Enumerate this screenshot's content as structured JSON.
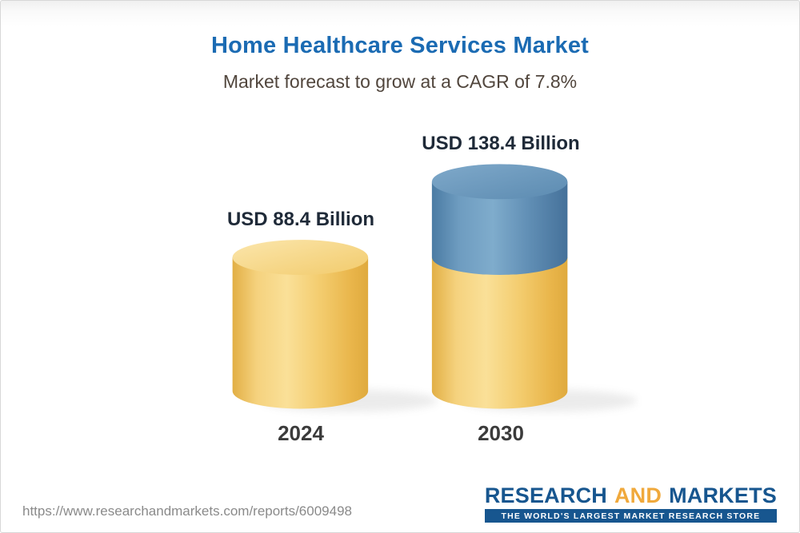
{
  "header": {
    "title": "Home Healthcare Services Market",
    "subtitle": "Market forecast to grow at a CAGR of 7.8%"
  },
  "chart_data": {
    "type": "bar",
    "subtype": "3d-cylinder",
    "title": "Home Healthcare Services Market",
    "subtitle": "Market forecast to grow at a CAGR of 7.8%",
    "cagr_percent": 7.8,
    "unit": "USD Billion",
    "categories": [
      "2024",
      "2030"
    ],
    "values": [
      88.4,
      138.4
    ],
    "value_labels": [
      "USD 88.4 Billion",
      "USD 138.4 Billion"
    ],
    "bars": [
      {
        "category": "2024",
        "segments": [
          {
            "value": 88.4,
            "color": "gold"
          }
        ]
      },
      {
        "category": "2030",
        "segments": [
          {
            "value": 88.4,
            "color": "gold"
          },
          {
            "value": 50.0,
            "color": "blue"
          }
        ]
      }
    ],
    "colors": {
      "gold": "#F3CC6E",
      "blue": "#6290B6",
      "title": "#1B6BB3",
      "subtitle": "#51463D",
      "value_label": "#1F2A38",
      "category_label": "#3B3B3B"
    },
    "axes": {
      "x_axis_visible": false,
      "y_axis_visible": false,
      "gridlines": false
    },
    "legend_position": "none",
    "ylim": [
      0,
      150
    ]
  },
  "footer": {
    "url": "https://www.researchandmarkets.com/reports/6009498",
    "logo": {
      "word_research": "RESEARCH",
      "word_and": "AND",
      "word_markets": "MARKETS",
      "tagline": "THE WORLD'S LARGEST MARKET RESEARCH STORE"
    }
  }
}
